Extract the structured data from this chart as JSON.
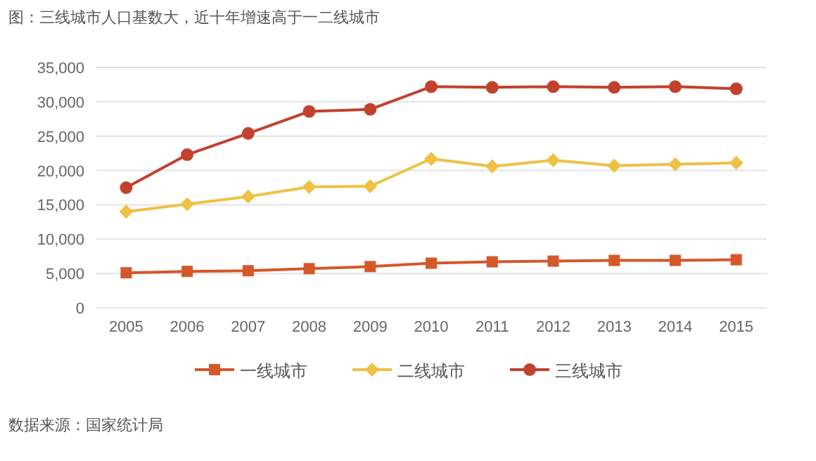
{
  "chart_data": {
    "type": "line",
    "title": "图：三线城市人口基数大，近十年增速高于一二线城市",
    "categories": [
      "2005",
      "2006",
      "2007",
      "2008",
      "2009",
      "2010",
      "2011",
      "2012",
      "2013",
      "2014",
      "2015"
    ],
    "series": [
      {
        "name": "一线城市",
        "color": "#d4582a",
        "marker": "square",
        "values": [
          5100,
          5300,
          5400,
          5700,
          6000,
          6500,
          6700,
          6800,
          6900,
          6900,
          7000
        ]
      },
      {
        "name": "二线城市",
        "color": "#eec145",
        "marker": "diamond",
        "values": [
          14000,
          15100,
          16200,
          17600,
          17700,
          21700,
          20600,
          21500,
          20700,
          20900,
          21100
        ]
      },
      {
        "name": "三线城市",
        "color": "#c2412d",
        "marker": "circle",
        "values": [
          17500,
          22300,
          25400,
          28600,
          28900,
          32200,
          32100,
          32200,
          32100,
          32200,
          31900
        ]
      }
    ],
    "ylim": [
      0,
      35000
    ],
    "yticks": [
      {
        "value": 0,
        "label": "0"
      },
      {
        "value": 5000,
        "label": "5,000"
      },
      {
        "value": 10000,
        "label": "10,000"
      },
      {
        "value": 15000,
        "label": "15,000"
      },
      {
        "value": 20000,
        "label": "20,000"
      },
      {
        "value": 25000,
        "label": "25,000"
      },
      {
        "value": 30000,
        "label": "30,000"
      },
      {
        "value": 35000,
        "label": "35,000"
      }
    ],
    "grid": "y",
    "legend": "bottom",
    "line_style": "solid",
    "annotations": [
      "数据来源：国家统计局"
    ]
  }
}
